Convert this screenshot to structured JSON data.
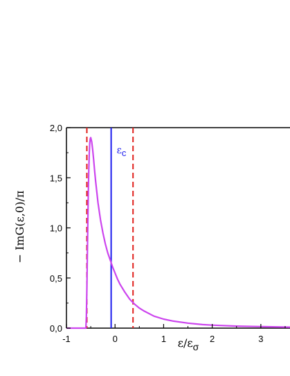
{
  "chart_data": {
    "type": "line",
    "title": "",
    "xlabel": "ε/ε",
    "xlabel_subscript": "σ",
    "ylabel": "− ImG(ε,0)/π",
    "xlim": [
      -1,
      3.6
    ],
    "ylim": [
      0,
      2.0
    ],
    "x_ticks": [
      -1,
      0,
      1,
      2,
      3
    ],
    "x_tick_labels": [
      "-1",
      "0",
      "1",
      "2",
      "3"
    ],
    "y_ticks": [
      0,
      0.5,
      1.0,
      1.5,
      2.0
    ],
    "y_tick_labels": [
      "0,0",
      "0,5",
      "1,0",
      "1,5",
      "2,0"
    ],
    "grid": false,
    "series": [
      {
        "color": "#cc44ee",
        "x": [
          -1.0,
          -0.6,
          -0.59,
          -0.58,
          -0.57,
          -0.56,
          -0.55,
          -0.54,
          -0.53,
          -0.52,
          -0.51,
          -0.5,
          -0.48,
          -0.46,
          -0.44,
          -0.42,
          -0.4,
          -0.35,
          -0.3,
          -0.25,
          -0.2,
          -0.15,
          -0.1,
          -0.05,
          0.0,
          0.05,
          0.1,
          0.2,
          0.3,
          0.4,
          0.5,
          0.6,
          0.8,
          1.0,
          1.2,
          1.5,
          1.8,
          2.0,
          2.5,
          3.0,
          3.6
        ],
        "y": [
          0,
          0,
          0.12,
          0.38,
          0.72,
          1.05,
          1.35,
          1.58,
          1.75,
          1.85,
          1.89,
          1.9,
          1.86,
          1.78,
          1.68,
          1.57,
          1.47,
          1.25,
          1.08,
          0.95,
          0.84,
          0.75,
          0.68,
          0.61,
          0.55,
          0.49,
          0.44,
          0.36,
          0.29,
          0.24,
          0.2,
          0.17,
          0.12,
          0.09,
          0.07,
          0.05,
          0.035,
          0.03,
          0.02,
          0.015,
          0.01
        ]
      }
    ],
    "vlines": [
      {
        "x": -0.58,
        "color": "#e0201c",
        "style": "dashed"
      },
      {
        "x": 0.37,
        "color": "#e0201c",
        "style": "dashed"
      },
      {
        "x": -0.08,
        "color": "#1a1aee",
        "style": "solid",
        "label": "ε",
        "label_subscript": "c"
      }
    ]
  }
}
